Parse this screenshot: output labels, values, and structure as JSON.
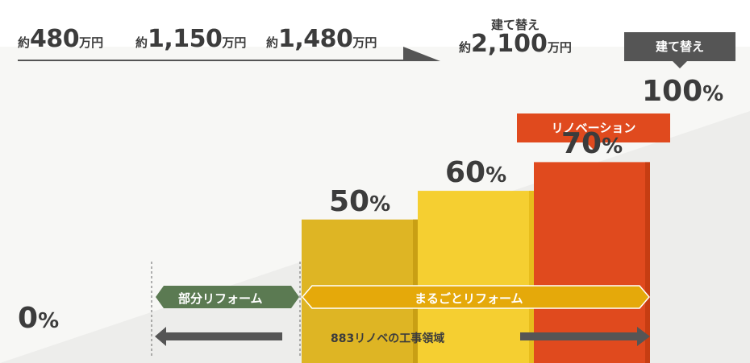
{
  "costs": [
    {
      "prefix": "約",
      "value": "480",
      "unit": "万円"
    },
    {
      "prefix": "約",
      "value": "1,150",
      "unit": "万円"
    },
    {
      "prefix": "約",
      "value": "1,480",
      "unit": "万円"
    }
  ],
  "rebuild_cost": {
    "caption": "建て替え",
    "prefix": "約",
    "value": "2,100",
    "unit": "万円"
  },
  "tags": {
    "rebuild": "建て替え",
    "renovation": "リノベーション"
  },
  "percent_sign": "%",
  "baseline": {
    "value": "0"
  },
  "rebuild_percent": {
    "value": "100"
  },
  "ranges": {
    "partial": "部分リフォーム",
    "full": "まるごとリフォーム",
    "scope": "883リノベの工事領域"
  },
  "colors": {
    "bar_50": "#deb524",
    "bar_60": "#f5cf31",
    "bar_70": "#e04a1e",
    "partial_banner": "#5b7a52",
    "full_banner": "#e5a90a",
    "gray_tag": "#555555",
    "background_wedge": "#ededeb"
  },
  "chart_data": {
    "type": "bar",
    "categories": [
      "",
      "",
      ""
    ],
    "values": [
      50,
      60,
      70
    ],
    "ylim": [
      0,
      100
    ],
    "grid": false,
    "title": "",
    "xlabel": "",
    "ylabel": ""
  }
}
